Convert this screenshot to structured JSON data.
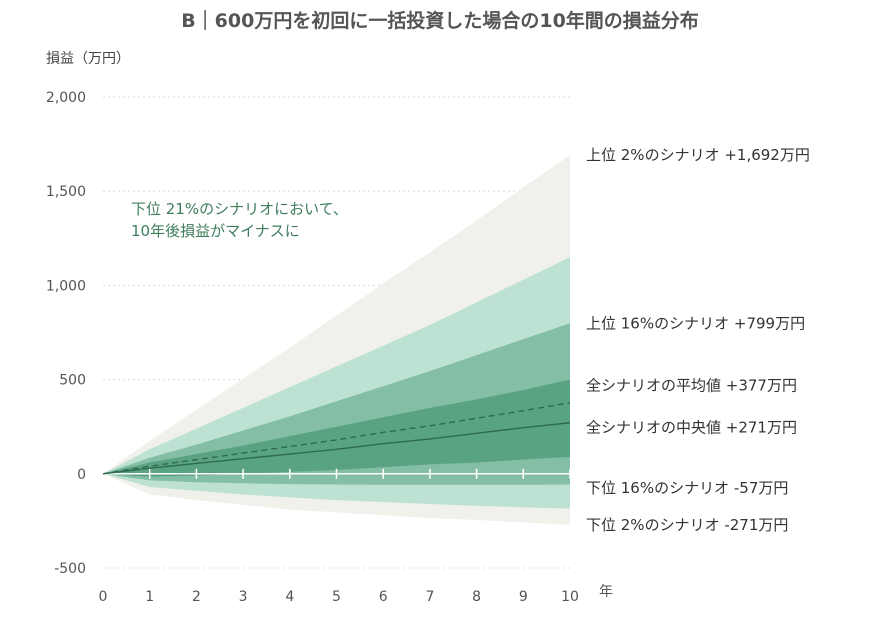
{
  "chart_data": {
    "type": "area",
    "title": "B｜600万円を初回に一括投資した場合の10年間の損益分布",
    "ylabel": "損益（万円）",
    "xlabel": "年",
    "x": [
      0,
      1,
      2,
      3,
      4,
      5,
      6,
      7,
      8,
      9,
      10
    ],
    "x_ticks": [
      "0",
      "1",
      "2",
      "3",
      "4",
      "5",
      "6",
      "7",
      "8",
      "9",
      "10"
    ],
    "ylim": [
      -500,
      2000
    ],
    "y_ticks": [
      {
        "value": 2000,
        "label": "2,000"
      },
      {
        "value": 1500,
        "label": "1,500"
      },
      {
        "value": 1000,
        "label": "1,000"
      },
      {
        "value": 500,
        "label": "500"
      },
      {
        "value": 0,
        "label": "0"
      },
      {
        "value": -500,
        "label": "-500"
      }
    ],
    "grid": true,
    "bands": [
      {
        "upper": [
          0,
          175,
          340,
          505,
          670,
          840,
          1010,
          1175,
          1345,
          1520,
          1692
        ],
        "lower": [
          0,
          -110,
          -140,
          -165,
          -190,
          -205,
          -220,
          -235,
          -245,
          -258,
          -271
        ],
        "color": "#f1f1eb"
      },
      {
        "upper": [
          0,
          130,
          240,
          350,
          460,
          570,
          680,
          790,
          910,
          1030,
          1150
        ],
        "lower": [
          0,
          -70,
          -90,
          -110,
          -125,
          -140,
          -150,
          -160,
          -170,
          -178,
          -185
        ],
        "color": "#bde2d3"
      },
      {
        "upper": [
          0,
          85,
          155,
          230,
          305,
          385,
          465,
          545,
          630,
          715,
          799
        ],
        "lower": [
          0,
          -35,
          -45,
          -50,
          -55,
          -57,
          -58,
          -58,
          -58,
          -58,
          -57
        ],
        "color": "#84bea5"
      },
      {
        "upper": [
          0,
          60,
          105,
          150,
          200,
          250,
          300,
          350,
          395,
          445,
          500
        ],
        "lower": [
          0,
          -15,
          -10,
          0,
          10,
          20,
          35,
          50,
          60,
          75,
          90
        ],
        "color": "#5aa382"
      }
    ],
    "series": [
      {
        "name": "全シナリオの平均値",
        "values": [
          0,
          40,
          75,
          110,
          145,
          180,
          220,
          255,
          295,
          335,
          377
        ],
        "style": "dashed",
        "color": "#2e6b4e"
      },
      {
        "name": "全シナリオの中央値",
        "values": [
          0,
          30,
          55,
          80,
          105,
          130,
          160,
          185,
          215,
          245,
          271
        ],
        "style": "solid",
        "color": "#2e6b4e"
      }
    ],
    "right_labels": [
      {
        "text": "上位 2%のシナリオ +1,692万円",
        "value": 1692
      },
      {
        "text": "上位 16%のシナリオ +799万円",
        "value": 799
      },
      {
        "text": "全シナリオの平均値 +377万円",
        "value": 470
      },
      {
        "text": "全シナリオの中央値 +271万円",
        "value": 245
      },
      {
        "text": "下位 16%のシナリオ -57万円",
        "value": -75
      },
      {
        "text": "下位 2%のシナリオ -271万円",
        "value": -271
      }
    ],
    "annotation": [
      "下位 21%のシナリオにおいて、",
      "10年後損益がマイナスに"
    ],
    "annotation_color": "#3f7d5c"
  }
}
